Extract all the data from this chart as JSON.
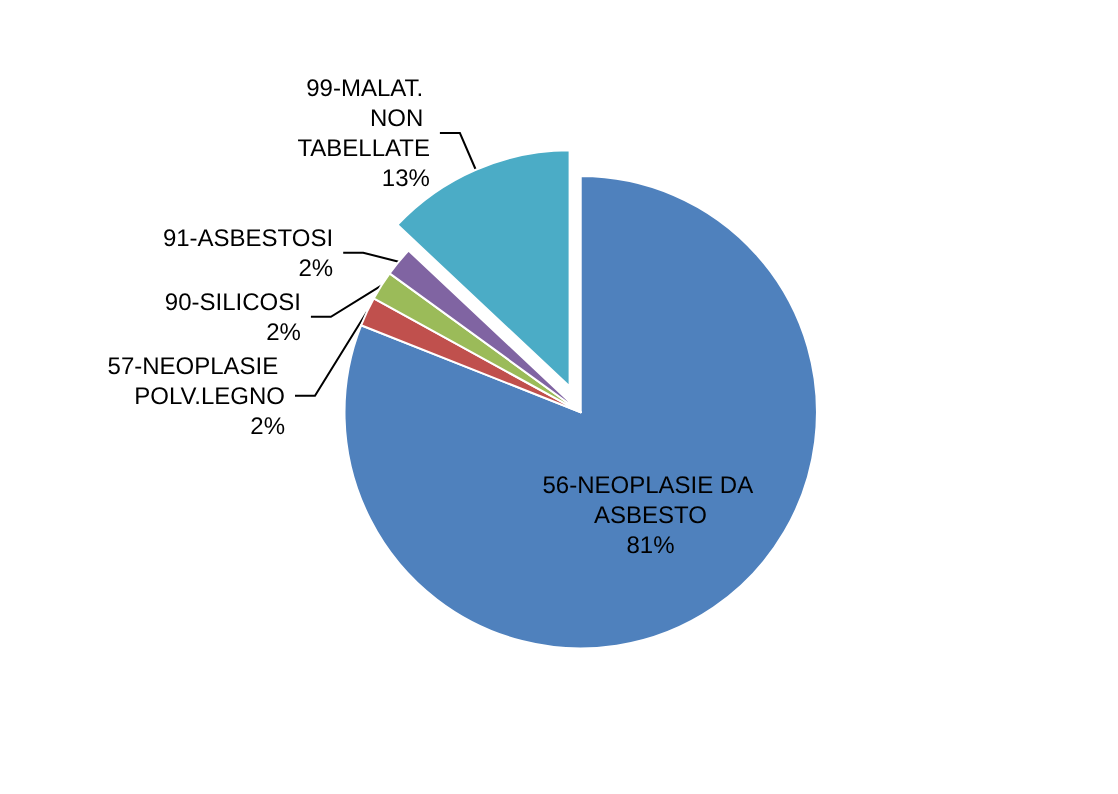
{
  "chart_data": {
    "type": "pie",
    "categories": [
      "56-NEOPLASIE DA ASBESTO",
      "57-NEOPLASIE POLV.LEGNO",
      "90-SILICOSI",
      "91-ASBESTOSI",
      "99-MALAT. NON TABELLATE"
    ],
    "values": [
      81,
      2,
      2,
      2,
      13
    ],
    "value_labels": [
      "81%",
      "2%",
      "2%",
      "2%",
      "13%"
    ],
    "colors": [
      "#4f81bd",
      "#c0504d",
      "#9bbb59",
      "#8064a2",
      "#4bacc6"
    ],
    "legend": false
  }
}
